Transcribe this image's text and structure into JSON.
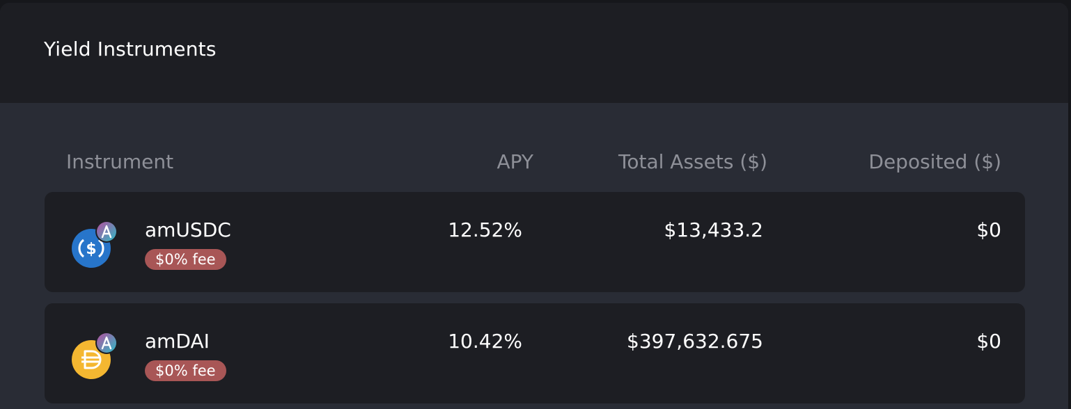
{
  "panel": {
    "title": "Yield Instruments"
  },
  "table": {
    "headers": {
      "instrument": "Instrument",
      "apy": "APY",
      "total_assets": "Total Assets ($)",
      "deposited": "Deposited ($)"
    },
    "rows": [
      {
        "name": "amUSDC",
        "fee": "$0% fee",
        "apy": "12.52%",
        "total_assets": "$13,433.2",
        "deposited": "$0",
        "icon": "usdc-aave-icon"
      },
      {
        "name": "amDAI",
        "fee": "$0% fee",
        "apy": "10.42%",
        "total_assets": "$397,632.675",
        "deposited": "$0",
        "icon": "dai-aave-icon"
      }
    ]
  },
  "colors": {
    "background": "#292c35",
    "card": "#1d1e23",
    "fee_badge": "#a85656",
    "usdc": "#2775ca",
    "dai": "#f4b731",
    "aave_gradient_start": "#b6509e",
    "aave_gradient_end": "#2ebac6"
  }
}
